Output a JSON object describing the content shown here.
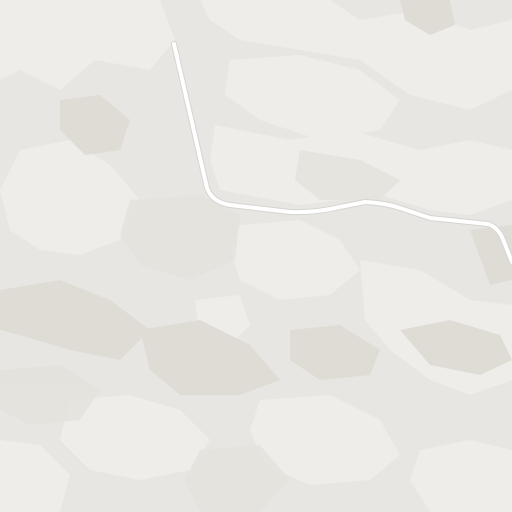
{
  "map": {
    "style": "terrain-light",
    "colors": {
      "background": "#e8e6e2",
      "terrain_light": "#eeedea",
      "terrain_mid": "#e4e2dd",
      "terrain_dark": "#dfdcd6",
      "road": "#ffffff",
      "road_casing": "#d6d4d0"
    },
    "features": {
      "road": {
        "kind": "minor-road",
        "label": ""
      },
      "terrain": {
        "kind": "hillshade-landcover"
      }
    }
  }
}
